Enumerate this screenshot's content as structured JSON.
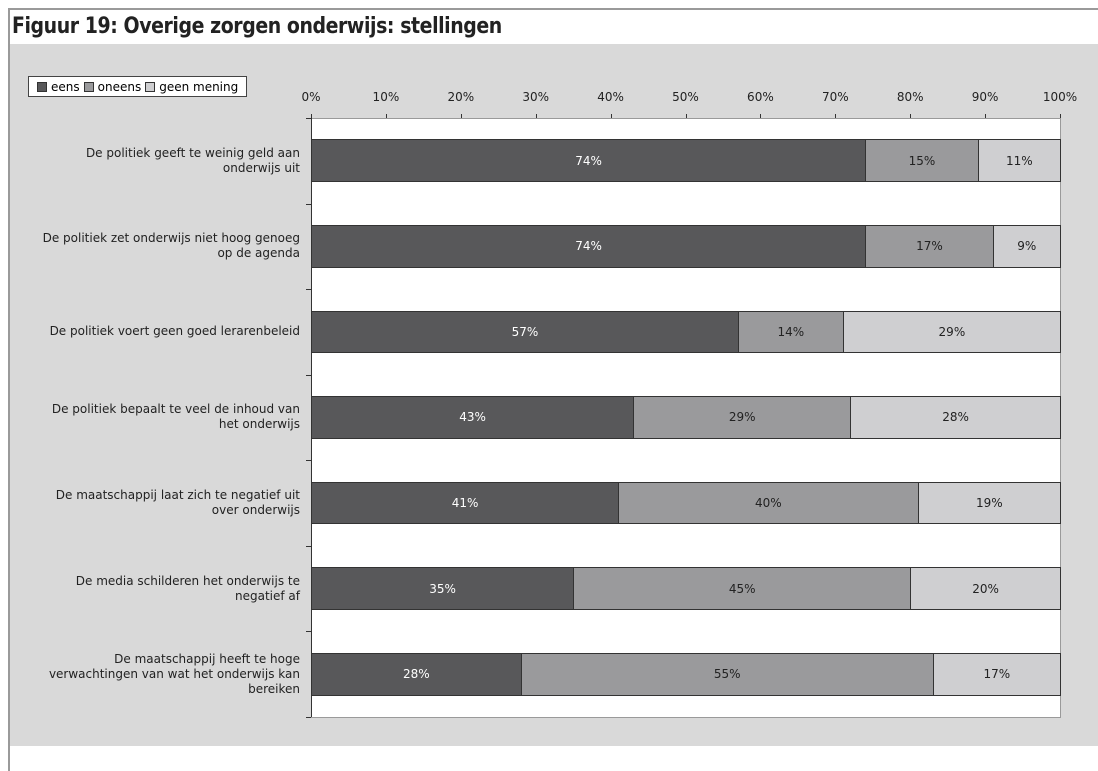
{
  "chart_data": {
    "type": "stacked_bar_horizontal",
    "title": "Figuur 19: Overige zorgen onderwijs: stellingen",
    "categories": [
      "De politiek geeft te weinig geld aan onderwijs uit",
      "De politiek zet onderwijs niet hoog genoeg op de agenda",
      "De politiek voert geen goed lerarenbeleid",
      "De politiek bepaalt te veel de inhoud van het onderwijs",
      "De maatschappij laat zich te negatief uit over onderwijs",
      "De media schilderen het onderwijs te negatief af",
      "De maatschappij heeft te hoge verwachtingen van wat het onderwijs kan bereiken"
    ],
    "series": [
      {
        "name": "eens",
        "color": "#58585a",
        "label_color": "#ffffff",
        "values": [
          74,
          74,
          57,
          43,
          41,
          35,
          28
        ],
        "value_labels": [
          "74%",
          "74%",
          "57%",
          "43%",
          "41%",
          "35%",
          "28%"
        ]
      },
      {
        "name": "oneens",
        "color": "#9a9a9c",
        "label_color": "#222222",
        "values": [
          15,
          17,
          14,
          29,
          40,
          45,
          55
        ],
        "value_labels": [
          "15%",
          "17%",
          "14%",
          "29%",
          "40%",
          "45%",
          "55%"
        ]
      },
      {
        "name": "geen mening",
        "color": "#cfcfd1",
        "label_color": "#222222",
        "values": [
          11,
          9,
          29,
          28,
          19,
          20,
          17
        ],
        "value_labels": [
          "11%",
          "9%",
          "29%",
          "28%",
          "19%",
          "20%",
          "17%"
        ]
      }
    ],
    "xlim": [
      0,
      100
    ],
    "xticks": [
      {
        "value": 0,
        "label": "0%"
      },
      {
        "value": 10,
        "label": "10%"
      },
      {
        "value": 20,
        "label": "20%"
      },
      {
        "value": 30,
        "label": "30%"
      },
      {
        "value": 40,
        "label": "40%"
      },
      {
        "value": 50,
        "label": "50%"
      },
      {
        "value": 60,
        "label": "60%"
      },
      {
        "value": 70,
        "label": "70%"
      },
      {
        "value": 80,
        "label": "80%"
      },
      {
        "value": 90,
        "label": "90%"
      },
      {
        "value": 100,
        "label": "100%"
      }
    ],
    "grid": false,
    "legend": "top-left"
  }
}
